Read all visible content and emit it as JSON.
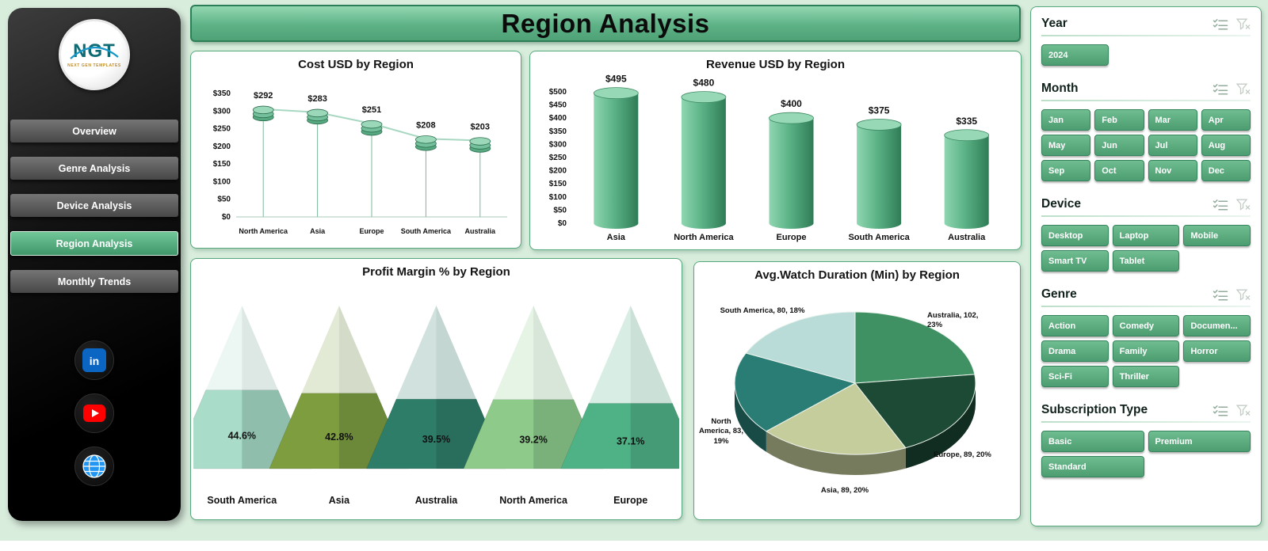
{
  "header": {
    "title": "Region Analysis"
  },
  "sidebar": {
    "logo": {
      "text": "NGT",
      "subtext": "NEXT GEN TEMPLATES"
    },
    "items": [
      {
        "label": "Overview"
      },
      {
        "label": "Genre Analysis"
      },
      {
        "label": "Device Analysis"
      },
      {
        "label": "Region Analysis"
      },
      {
        "label": "Monthly Trends"
      }
    ],
    "active_item": "Region Analysis",
    "social": [
      {
        "name": "linkedin"
      },
      {
        "name": "youtube"
      },
      {
        "name": "website"
      }
    ]
  },
  "slicers": [
    {
      "title": "Year",
      "options": [
        "2024"
      ]
    },
    {
      "title": "Month",
      "options": [
        "Jan",
        "Feb",
        "Mar",
        "Apr",
        "May",
        "Jun",
        "Jul",
        "Aug",
        "Sep",
        "Oct",
        "Nov",
        "Dec"
      ]
    },
    {
      "title": "Device",
      "options": [
        "Desktop",
        "Laptop",
        "Mobile",
        "Smart TV",
        "Tablet"
      ]
    },
    {
      "title": "Genre",
      "options": [
        "Action",
        "Comedy",
        "Documen...",
        "Drama",
        "Family",
        "Horror",
        "Sci-Fi",
        "Thriller"
      ]
    },
    {
      "title": "Subscription Type",
      "options": [
        "Basic",
        "Premium",
        "Standard"
      ]
    }
  ],
  "chart_data": [
    {
      "type": "line",
      "title": "Cost USD by Region",
      "categories": [
        "North America",
        "Asia",
        "Europe",
        "South America",
        "Australia"
      ],
      "values": [
        292,
        283,
        251,
        208,
        203
      ],
      "data_labels": [
        "$292",
        "$283",
        "$251",
        "$208",
        "$203"
      ],
      "ylabel_prefix": "$",
      "ylim": [
        0,
        350
      ],
      "ytick": 50
    },
    {
      "type": "bar",
      "title": "Revenue USD by Region",
      "categories": [
        "Asia",
        "North America",
        "Europe",
        "South America",
        "Australia"
      ],
      "values": [
        495,
        480,
        400,
        375,
        335
      ],
      "data_labels": [
        "$495",
        "$480",
        "$400",
        "$375",
        "$335"
      ],
      "ylabel_prefix": "$",
      "ylim": [
        0,
        500
      ],
      "ytick": 50
    },
    {
      "type": "pyramid",
      "title": "Profit Margin % by Region",
      "categories": [
        "South America",
        "Asia",
        "Australia",
        "North America",
        "Europe"
      ],
      "values": [
        44.6,
        42.8,
        39.5,
        39.2,
        37.1
      ],
      "data_labels": [
        "44.6%",
        "42.8%",
        "39.5%",
        "39.2%",
        "37.1%"
      ],
      "colors": [
        "#a9dcc9",
        "#7d9d3f",
        "#2e7d68",
        "#8ecb8b",
        "#4fb286"
      ]
    },
    {
      "type": "pie",
      "title": "Avg.Watch Duration (Min) by Region",
      "slices": [
        {
          "name": "Australia",
          "value": 102,
          "pct": 23,
          "label": "Australia, 102, 23%",
          "color": "#3f9063"
        },
        {
          "name": "Europe",
          "value": 89,
          "pct": 20,
          "label": "Europe, 89, 20%",
          "color": "#1d4a35"
        },
        {
          "name": "Asia",
          "value": 89,
          "pct": 20,
          "label": "Asia, 89, 20%",
          "color": "#c6cd9d"
        },
        {
          "name": "North America",
          "value": 83,
          "pct": 19,
          "label": "North America, 83, 19%",
          "color": "#2a7d74"
        },
        {
          "name": "South America",
          "value": 80,
          "pct": 18,
          "label": "South America, 80, 18%",
          "color": "#badcd8"
        }
      ]
    }
  ],
  "theme": {
    "accent": "#4c9d71",
    "banner": "#5db286",
    "background": "#d9eddd"
  }
}
